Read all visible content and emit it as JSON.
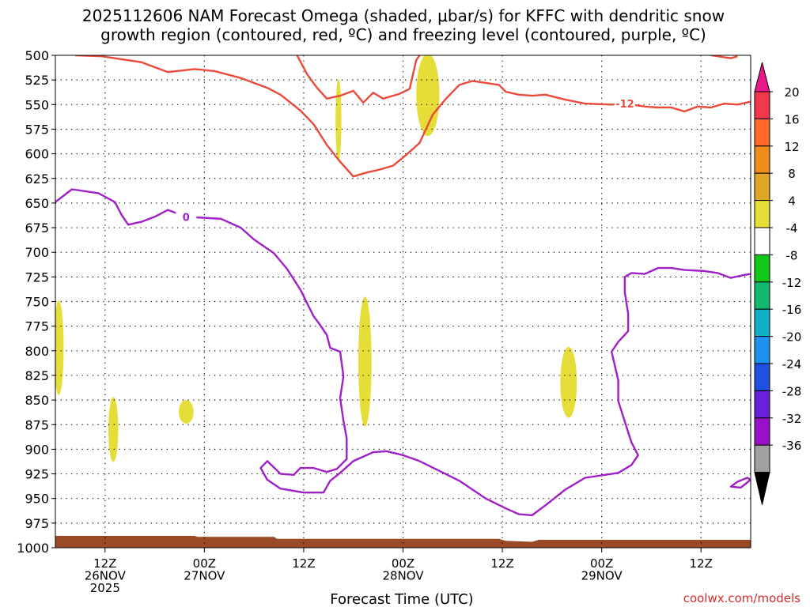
{
  "chart_data": {
    "type": "heatmap",
    "title_lines": [
      "2025112606 NAM Forecast Omega (shaded, μbar/s) for KFFC with dendritic snow",
      "growth region (contoured, red, ºC) and freezing level (contoured, purple, ºC)"
    ],
    "xlabel": "Forecast Time (UTC)",
    "credit": "coolwx.com/models",
    "y_axis": {
      "unit": "hPa",
      "range": [
        1000,
        500
      ],
      "ticks": [
        "500",
        "525",
        "550",
        "575",
        "600",
        "625",
        "650",
        "675",
        "700",
        "725",
        "750",
        "775",
        "800",
        "825",
        "850",
        "875",
        "900",
        "925",
        "950",
        "975",
        "1000"
      ]
    },
    "x_axis": {
      "unit": "forecast hour",
      "range": [
        0,
        84
      ],
      "ticks": [
        {
          "hour": 6,
          "lines": [
            "12Z",
            "26NOV",
            "2025"
          ]
        },
        {
          "hour": 18,
          "lines": [
            "00Z",
            "27NOV"
          ]
        },
        {
          "hour": 30,
          "lines": [
            "12Z"
          ]
        },
        {
          "hour": 42,
          "lines": [
            "00Z",
            "28NOV"
          ]
        },
        {
          "hour": 54,
          "lines": [
            "12Z"
          ]
        },
        {
          "hour": 66,
          "lines": [
            "00Z",
            "29NOV"
          ]
        },
        {
          "hour": 78,
          "lines": [
            "12Z"
          ]
        }
      ]
    },
    "colorbar": {
      "labels": [
        "20",
        "16",
        "12",
        "8",
        "4",
        "-4",
        "-8",
        "-12",
        "-16",
        "-20",
        "-24",
        "-28",
        "-32",
        "-36"
      ],
      "colors": [
        "#f0384a",
        "#ff6a2a",
        "#f08c1c",
        "#e0a628",
        "#e6de38",
        "#ffffff",
        "#10c818",
        "#10b870",
        "#10b0c8",
        "#2090ee",
        "#2050e0",
        "#6820d8",
        "#9810c8",
        "#a0a0a0"
      ],
      "top_triangle_color": "#e8188c",
      "bottom_triangle_color": "#000000"
    },
    "series": [
      {
        "name": "dgz_-12C",
        "color": "#ea4a3a",
        "label": "-12",
        "label_at": [
          68.8,
          549
        ],
        "segments": [
          [
            [
              2.4,
              500
            ],
            [
              5.6,
              501
            ],
            [
              10.4,
              507
            ],
            [
              13.6,
              517
            ],
            [
              16.8,
              514
            ],
            [
              19.2,
              516
            ],
            [
              22.4,
              523
            ],
            [
              25.6,
              533
            ],
            [
              27.2,
              540
            ],
            [
              29.6,
              556
            ],
            [
              31.2,
              570
            ],
            [
              32.8,
              591
            ],
            [
              34.4,
              608
            ],
            [
              36.0,
              623
            ],
            [
              37.6,
              619
            ],
            [
              39.2,
              616
            ],
            [
              40.8,
              612
            ],
            [
              42.4,
              601
            ],
            [
              44.0,
              589
            ],
            [
              45.6,
              560
            ],
            [
              47.2,
              544
            ],
            [
              48.8,
              530
            ],
            [
              50.4,
              526
            ],
            [
              53.6,
              530
            ],
            [
              54.4,
              537
            ],
            [
              56.0,
              540
            ],
            [
              57.6,
              541
            ],
            [
              59.2,
              540
            ],
            [
              61.6,
              545
            ],
            [
              64.0,
              549
            ],
            [
              67.2,
              550
            ],
            [
              68.8,
              549
            ],
            [
              71.2,
              552
            ],
            [
              72.8,
              553
            ],
            [
              74.4,
              553
            ],
            [
              76.0,
              557
            ],
            [
              77.6,
              552
            ],
            [
              79.2,
              553
            ],
            [
              80.8,
              549
            ],
            [
              82.4,
              550
            ],
            [
              84.0,
              547
            ]
          ],
          [
            [
              31.6,
              533
            ],
            [
              32.8,
              544
            ],
            [
              34.4,
              541
            ],
            [
              36.0,
              536
            ],
            [
              37.2,
              548
            ],
            [
              38.4,
              538
            ],
            [
              39.6,
              544
            ],
            [
              41.6,
              539
            ],
            [
              42.8,
              534
            ],
            [
              43.6,
              505
            ],
            [
              44.0,
              500
            ]
          ],
          [
            [
              31.6,
              533
            ],
            [
              30.4,
              519
            ],
            [
              29.2,
              500
            ]
          ],
          [
            [
              79.2,
              500
            ],
            [
              81.6,
              503
            ],
            [
              82.4,
              501
            ]
          ]
        ]
      },
      {
        "name": "freezing_0C",
        "color": "#a020c8",
        "label": "0",
        "label_at": [
          15.8,
          664
        ],
        "segments": [
          [
            [
              0,
              649
            ],
            [
              2.0,
              636
            ],
            [
              5.2,
              640
            ],
            [
              7.2,
              649
            ],
            [
              8.0,
              662
            ],
            [
              8.8,
              672
            ],
            [
              10.4,
              669
            ],
            [
              12.0,
              664
            ],
            [
              13.6,
              657
            ],
            [
              15.8,
              664
            ],
            [
              20.0,
              666
            ],
            [
              22.4,
              675
            ],
            [
              24.0,
              687
            ],
            [
              26.4,
              701
            ],
            [
              28.0,
              717
            ],
            [
              29.6,
              738
            ],
            [
              31.2,
              765
            ],
            [
              32.0,
              774
            ],
            [
              32.8,
              784
            ],
            [
              33.2,
              797
            ],
            [
              34.4,
              801
            ],
            [
              34.8,
              826
            ],
            [
              34.4,
              848
            ],
            [
              34.8,
              871
            ],
            [
              35.2,
              889
            ],
            [
              35.2,
              910
            ],
            [
              34.0,
              920
            ],
            [
              32.8,
              923
            ],
            [
              31.2,
              919
            ],
            [
              29.6,
              919
            ],
            [
              28.8,
              926
            ],
            [
              27.2,
              925
            ],
            [
              25.6,
              912
            ],
            [
              24.8,
              919
            ],
            [
              25.6,
              931
            ],
            [
              27.2,
              940
            ],
            [
              30.0,
              944
            ],
            [
              32.4,
              944
            ],
            [
              33.2,
              932
            ],
            [
              34.4,
              924
            ],
            [
              36.0,
              912
            ],
            [
              38.4,
              903
            ],
            [
              40.0,
              902
            ],
            [
              42.0,
              906
            ],
            [
              44.0,
              912
            ],
            [
              46.4,
              922
            ],
            [
              48.8,
              932
            ],
            [
              50.4,
              941
            ],
            [
              52.0,
              950
            ],
            [
              54.4,
              960
            ],
            [
              56.0,
              966
            ],
            [
              57.6,
              967
            ],
            [
              59.2,
              957
            ],
            [
              61.6,
              941
            ],
            [
              64.0,
              929
            ],
            [
              66.4,
              926
            ],
            [
              68.0,
              924
            ],
            [
              69.6,
              916
            ],
            [
              70.4,
              906
            ],
            [
              69.6,
              893
            ],
            [
              68.8,
              872
            ],
            [
              68.0,
              851
            ],
            [
              68.0,
              830
            ],
            [
              67.2,
              801
            ],
            [
              68.0,
              791
            ],
            [
              69.2,
              780
            ],
            [
              69.2,
              762
            ],
            [
              68.8,
              741
            ],
            [
              68.8,
              725
            ],
            [
              69.6,
              721
            ],
            [
              71.2,
              722
            ],
            [
              72.8,
              716
            ],
            [
              74.4,
              716
            ],
            [
              76.0,
              718
            ],
            [
              78.4,
              719
            ],
            [
              80.0,
              721
            ],
            [
              81.6,
              726
            ],
            [
              83.2,
              723
            ],
            [
              84.0,
              722
            ]
          ],
          [
            [
              82.4,
              933
            ],
            [
              83.6,
              929
            ],
            [
              84.0,
              931
            ],
            [
              82.8,
              939
            ],
            [
              81.6,
              938
            ],
            [
              82.4,
              933
            ]
          ]
        ]
      }
    ],
    "omega_shaded_blobs": [
      {
        "color": "#e6de38",
        "center": [
          0.4,
          797
        ],
        "radius": [
          0.6,
          48
        ]
      },
      {
        "color": "#e6de38",
        "center": [
          7.0,
          880
        ],
        "radius": [
          0.6,
          33
        ]
      },
      {
        "color": "#e6de38",
        "center": [
          15.8,
          862
        ],
        "radius": [
          0.9,
          12
        ]
      },
      {
        "color": "#e6de38",
        "center": [
          34.2,
          566
        ],
        "radius": [
          0.35,
          42
        ]
      },
      {
        "color": "#e6de38",
        "center": [
          37.4,
          811
        ],
        "radius": [
          0.8,
          66
        ]
      },
      {
        "color": "#e6de38",
        "center": [
          45.0,
          540
        ],
        "radius": [
          1.4,
          42
        ]
      },
      {
        "color": "#e6de38",
        "center": [
          62.0,
          832
        ],
        "radius": [
          1.0,
          36
        ]
      }
    ],
    "terrain_surface": {
      "color": "#9a4a24",
      "top_pressure": [
        [
          0,
          988
        ],
        [
          16.8,
          988
        ],
        [
          17.2,
          989
        ],
        [
          26.4,
          989
        ],
        [
          26.8,
          991
        ],
        [
          53.6,
          991
        ],
        [
          54.4,
          993
        ],
        [
          57.6,
          994
        ],
        [
          58.4,
          992
        ],
        [
          84,
          992
        ]
      ]
    }
  }
}
